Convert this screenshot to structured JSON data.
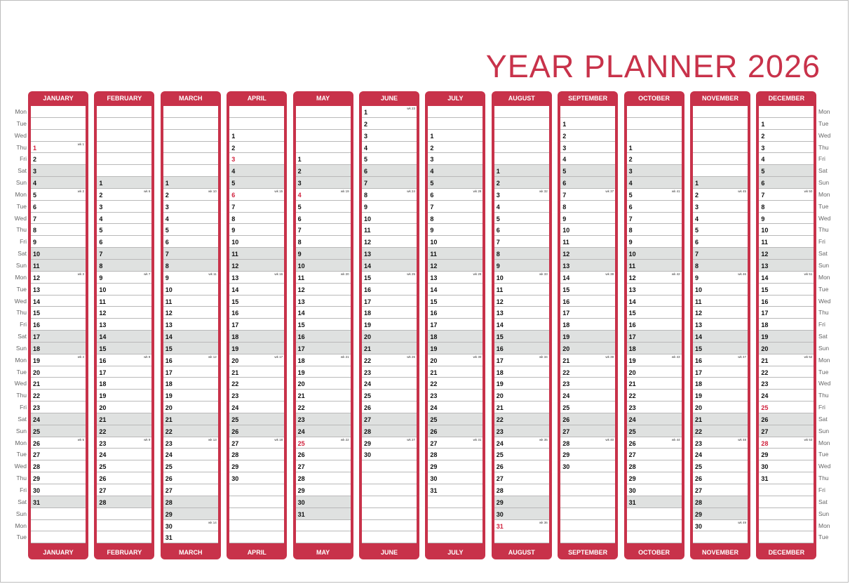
{
  "title": "YEAR PLANNER 2026",
  "weekday_labels": [
    "Mon",
    "Tue",
    "Wed",
    "Thu",
    "Fri",
    "Sat",
    "Sun",
    "Mon",
    "Tue",
    "Wed",
    "Thu",
    "Fri",
    "Sat",
    "Sun",
    "Mon",
    "Tue",
    "Wed",
    "Thu",
    "Fri",
    "Sat",
    "Sun",
    "Mon",
    "Tue",
    "Wed",
    "Thu",
    "Fri",
    "Sat",
    "Sun",
    "Mon",
    "Tue",
    "Wed",
    "Thu",
    "Fri",
    "Sat",
    "Sun",
    "Mon",
    "Tue"
  ],
  "colors": {
    "accent": "#c8324a",
    "holiday": "#d0213c",
    "weekend_shade": "#dfe1e0"
  },
  "months": [
    {
      "name": "JANUARY",
      "offset": 3,
      "days": 31,
      "holidays": [
        1
      ],
      "weeks": [
        {
          "day": 1,
          "label": "wk 1"
        },
        {
          "day": 5,
          "label": "wk 2"
        },
        {
          "day": 12,
          "label": "wk 3"
        },
        {
          "day": 19,
          "label": "wk 4"
        },
        {
          "day": 26,
          "label": "wk 5"
        }
      ]
    },
    {
      "name": "FEBRUARY",
      "offset": 6,
      "days": 28,
      "holidays": [],
      "weeks": [
        {
          "day": 2,
          "label": "wk 6"
        },
        {
          "day": 9,
          "label": "wk 7"
        },
        {
          "day": 16,
          "label": "wk 8"
        },
        {
          "day": 23,
          "label": "wk 9"
        }
      ]
    },
    {
      "name": "MARCH",
      "offset": 6,
      "days": 31,
      "holidays": [],
      "weeks": [
        {
          "day": 2,
          "label": "wk 10"
        },
        {
          "day": 9,
          "label": "wk 11"
        },
        {
          "day": 16,
          "label": "wk 12"
        },
        {
          "day": 23,
          "label": "wk 13"
        },
        {
          "day": 30,
          "label": "wk 14"
        }
      ]
    },
    {
      "name": "APRIL",
      "offset": 2,
      "days": 30,
      "holidays": [
        3,
        6
      ],
      "weeks": [
        {
          "day": 6,
          "label": "wk 15"
        },
        {
          "day": 13,
          "label": "wk 16"
        },
        {
          "day": 20,
          "label": "wk 17"
        },
        {
          "day": 27,
          "label": "wk 18"
        }
      ]
    },
    {
      "name": "MAY",
      "offset": 4,
      "days": 31,
      "holidays": [
        4,
        25
      ],
      "weeks": [
        {
          "day": 4,
          "label": "wk 19"
        },
        {
          "day": 11,
          "label": "wk 20"
        },
        {
          "day": 18,
          "label": "wk 21"
        },
        {
          "day": 25,
          "label": "wk 22"
        }
      ]
    },
    {
      "name": "JUNE",
      "offset": 0,
      "days": 30,
      "holidays": [],
      "weeks": [
        {
          "day": 1,
          "label": "wk 23"
        },
        {
          "day": 8,
          "label": "wk 24"
        },
        {
          "day": 15,
          "label": "wk 25"
        },
        {
          "day": 22,
          "label": "wk 26"
        },
        {
          "day": 29,
          "label": "wk 27"
        }
      ]
    },
    {
      "name": "JULY",
      "offset": 2,
      "days": 31,
      "holidays": [],
      "weeks": [
        {
          "day": 6,
          "label": "wk 28"
        },
        {
          "day": 13,
          "label": "wk 29"
        },
        {
          "day": 20,
          "label": "wk 30"
        },
        {
          "day": 27,
          "label": "wk 31"
        }
      ]
    },
    {
      "name": "AUGUST",
      "offset": 5,
      "days": 31,
      "holidays": [
        31
      ],
      "weeks": [
        {
          "day": 3,
          "label": "wk 32"
        },
        {
          "day": 10,
          "label": "wk 33"
        },
        {
          "day": 17,
          "label": "wk 34"
        },
        {
          "day": 24,
          "label": "wk 35"
        },
        {
          "day": 31,
          "label": "wk 36"
        }
      ]
    },
    {
      "name": "SEPTEMBER",
      "offset": 1,
      "days": 30,
      "holidays": [],
      "weeks": [
        {
          "day": 7,
          "label": "wk 37"
        },
        {
          "day": 14,
          "label": "wk 38"
        },
        {
          "day": 21,
          "label": "wk 39"
        },
        {
          "day": 28,
          "label": "wk 40"
        }
      ]
    },
    {
      "name": "OCTOBER",
      "offset": 3,
      "days": 31,
      "holidays": [],
      "weeks": [
        {
          "day": 5,
          "label": "wk 41"
        },
        {
          "day": 12,
          "label": "wk 42"
        },
        {
          "day": 19,
          "label": "wk 43"
        },
        {
          "day": 26,
          "label": "wk 44"
        }
      ]
    },
    {
      "name": "NOVEMBER",
      "offset": 6,
      "days": 30,
      "holidays": [],
      "weeks": [
        {
          "day": 2,
          "label": "wk 45"
        },
        {
          "day": 9,
          "label": "wk 46"
        },
        {
          "day": 16,
          "label": "wk 47"
        },
        {
          "day": 23,
          "label": "wk 48"
        },
        {
          "day": 30,
          "label": "wk 49"
        }
      ]
    },
    {
      "name": "DECEMBER",
      "offset": 1,
      "days": 31,
      "holidays": [
        25,
        28
      ],
      "weeks": [
        {
          "day": 7,
          "label": "wk 50"
        },
        {
          "day": 14,
          "label": "wk 51"
        },
        {
          "day": 21,
          "label": "wk 52"
        },
        {
          "day": 28,
          "label": "wk 53"
        }
      ]
    }
  ]
}
